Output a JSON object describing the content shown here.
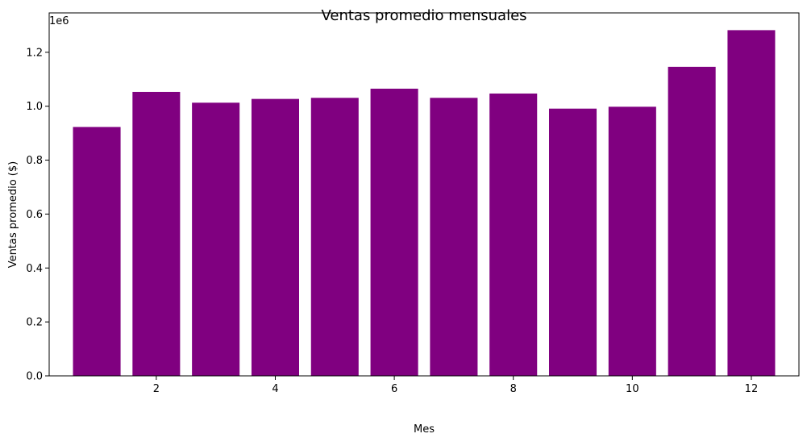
{
  "chart_data": {
    "type": "bar",
    "title": "Ventas promedio mensuales",
    "xlabel": "Mes",
    "ylabel": "Ventas promedio ($)",
    "y_offset_label": "1e6",
    "x": [
      1,
      2,
      3,
      4,
      5,
      6,
      7,
      8,
      9,
      10,
      11,
      12
    ],
    "values": [
      923000,
      1053000,
      1013000,
      1027000,
      1031000,
      1065000,
      1031000,
      1047000,
      991000,
      998000,
      1146000,
      1282000
    ],
    "xlim": [
      0.2,
      12.8
    ],
    "ylim": [
      0,
      1346000
    ],
    "xticks": [
      2,
      4,
      6,
      8,
      10,
      12
    ],
    "yticks": [
      0,
      200000,
      400000,
      600000,
      800000,
      1000000,
      1200000
    ],
    "ytick_labels": [
      "0.0",
      "0.2",
      "0.4",
      "0.6",
      "0.8",
      "1.0",
      "1.2"
    ],
    "bar_color": "#800080",
    "grid": false,
    "legend": "none"
  }
}
